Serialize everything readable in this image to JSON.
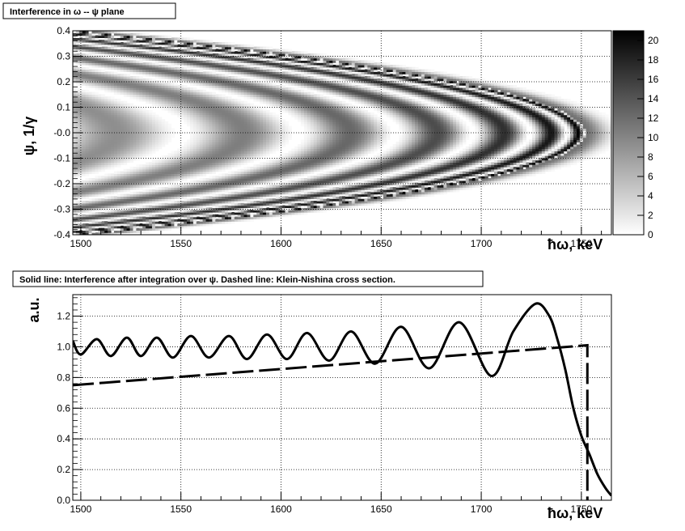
{
  "chart_data": [
    {
      "type": "heatmap",
      "title": "Interference in ω -- ψ plane",
      "xlabel": "ħω, keV",
      "ylabel": "ψ, 1/γ",
      "xlim": [
        1496,
        1765
      ],
      "ylim": [
        -0.4,
        0.4
      ],
      "x_ticks": [
        "1500",
        "1550",
        "1600",
        "1650",
        "1700",
        "1750"
      ],
      "x_tick_values": [
        1500,
        1550,
        1600,
        1650,
        1700,
        1750
      ],
      "y_ticks": [
        "0.4",
        "0.3",
        "0.2",
        "0.1",
        "-0.0",
        "-0.1",
        "-0.2",
        "-0.3",
        "-0.4"
      ],
      "y_tick_values": [
        0.4,
        0.3,
        0.2,
        0.1,
        0.0,
        -0.1,
        -0.2,
        -0.3,
        -0.4
      ],
      "color_scale": {
        "min": 0,
        "max": 21,
        "ticks": [
          "0",
          "2",
          "4",
          "6",
          "8",
          "10",
          "12",
          "14",
          "16",
          "18",
          "20"
        ],
        "tick_values": [
          0,
          2,
          4,
          6,
          8,
          10,
          12,
          14,
          16,
          18,
          20
        ],
        "colors": [
          "#ffffff",
          "#000000"
        ]
      },
      "model": {
        "edge_omega": 1752,
        "omega_at_psi_max": 1500,
        "psi_max": 0.4
      },
      "grid": true
    },
    {
      "type": "line",
      "title": "Solid line: Interference after integration over ψ. Dashed line: Klein-Nishina cross section.",
      "xlabel": "ħω, keV",
      "ylabel": "a.u.",
      "xlim": [
        1496,
        1765
      ],
      "ylim": [
        0,
        1.34
      ],
      "x_ticks": [
        "1500",
        "1550",
        "1600",
        "1650",
        "1700",
        "1750"
      ],
      "x_tick_values": [
        1500,
        1550,
        1600,
        1650,
        1700,
        1750
      ],
      "y_ticks": [
        "1.2",
        "1.0",
        "0.8",
        "0.6",
        "0.4",
        "0.2",
        "0.0"
      ],
      "y_tick_values": [
        1.2,
        1.0,
        0.8,
        0.6,
        0.4,
        0.2,
        0.0
      ],
      "grid": true,
      "series": [
        {
          "style": "solid",
          "x": [
            1496,
            1500,
            1508,
            1515,
            1523,
            1530,
            1538,
            1546,
            1555,
            1564,
            1574,
            1583,
            1593,
            1603,
            1613,
            1624,
            1635,
            1647,
            1660,
            1674,
            1689,
            1705,
            1716,
            1727,
            1734,
            1738,
            1742,
            1746,
            1750,
            1754,
            1758,
            1762,
            1765
          ],
          "y": [
            1.04,
            0.95,
            1.05,
            0.94,
            1.06,
            0.94,
            1.06,
            0.93,
            1.07,
            0.93,
            1.07,
            0.92,
            1.08,
            0.92,
            1.09,
            0.91,
            1.1,
            0.89,
            1.13,
            0.86,
            1.16,
            0.81,
            1.1,
            1.28,
            1.2,
            1.05,
            0.85,
            0.6,
            0.42,
            0.3,
            0.17,
            0.08,
            0.03
          ]
        },
        {
          "style": "dashed",
          "x": [
            1496,
            1753,
            1753
          ],
          "y": [
            0.75,
            1.01,
            0.0
          ]
        }
      ]
    }
  ]
}
